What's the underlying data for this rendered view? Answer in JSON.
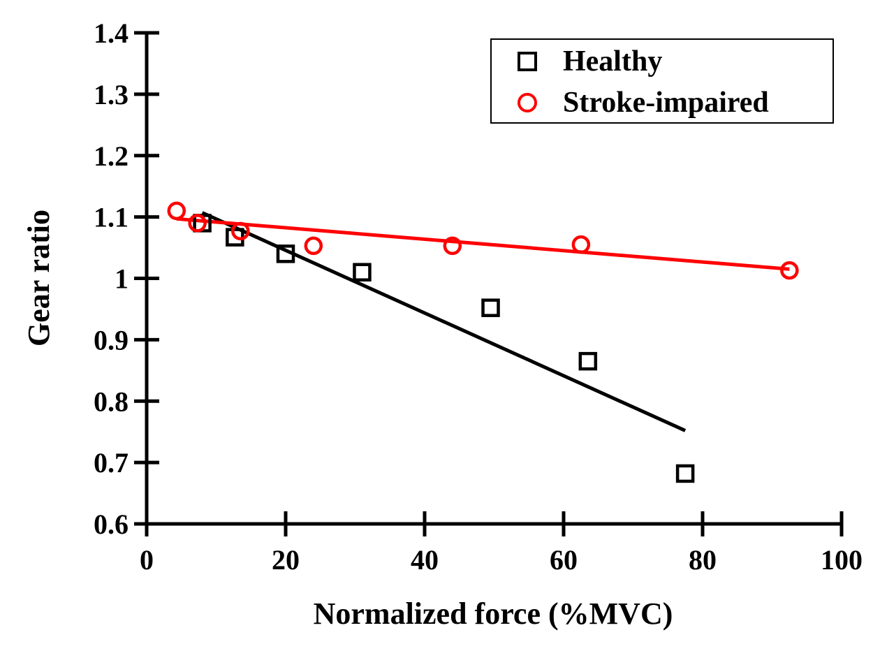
{
  "chart_data": {
    "type": "scatter",
    "xlabel": "Normalized force (%MVC)",
    "ylabel": "Gear ratio",
    "xlim": [
      0,
      100
    ],
    "ylim": [
      0.6,
      1.4
    ],
    "x_ticks": [
      0,
      20,
      40,
      60,
      80,
      100
    ],
    "y_ticks": [
      0.6,
      0.7,
      0.8,
      0.9,
      1.0,
      1.1,
      1.2,
      1.3,
      1.4
    ],
    "x_tick_labels": [
      "0",
      "20",
      "40",
      "60",
      "80",
      "100"
    ],
    "y_tick_labels": [
      "0.6",
      "0.7",
      "0.8",
      "0.9",
      "1",
      "1.1",
      "1.2",
      "1.3",
      "1.4"
    ],
    "grid": false,
    "legend_position": "top-right",
    "series": [
      {
        "name": "Healthy",
        "marker": "square",
        "color": "#000000",
        "points": [
          {
            "x": 8,
            "y": 1.09
          },
          {
            "x": 12.7,
            "y": 1.067
          },
          {
            "x": 20,
            "y": 1.04
          },
          {
            "x": 31,
            "y": 1.01
          },
          {
            "x": 49.5,
            "y": 0.952
          },
          {
            "x": 63.5,
            "y": 0.865
          },
          {
            "x": 77.5,
            "y": 0.682
          }
        ],
        "trendline": {
          "x": [
            8,
            77.5
          ],
          "y": [
            1.107,
            0.752
          ]
        }
      },
      {
        "name": "Stroke-impaired",
        "marker": "circle",
        "color": "#ff0000",
        "points": [
          {
            "x": 4.3,
            "y": 1.11
          },
          {
            "x": 7.3,
            "y": 1.09
          },
          {
            "x": 13.5,
            "y": 1.077
          },
          {
            "x": 24,
            "y": 1.053
          },
          {
            "x": 44,
            "y": 1.053
          },
          {
            "x": 62.5,
            "y": 1.055
          },
          {
            "x": 92.5,
            "y": 1.013
          }
        ],
        "trendline": {
          "x": [
            4.3,
            92.5
          ],
          "y": [
            1.097,
            1.015
          ]
        }
      }
    ]
  }
}
